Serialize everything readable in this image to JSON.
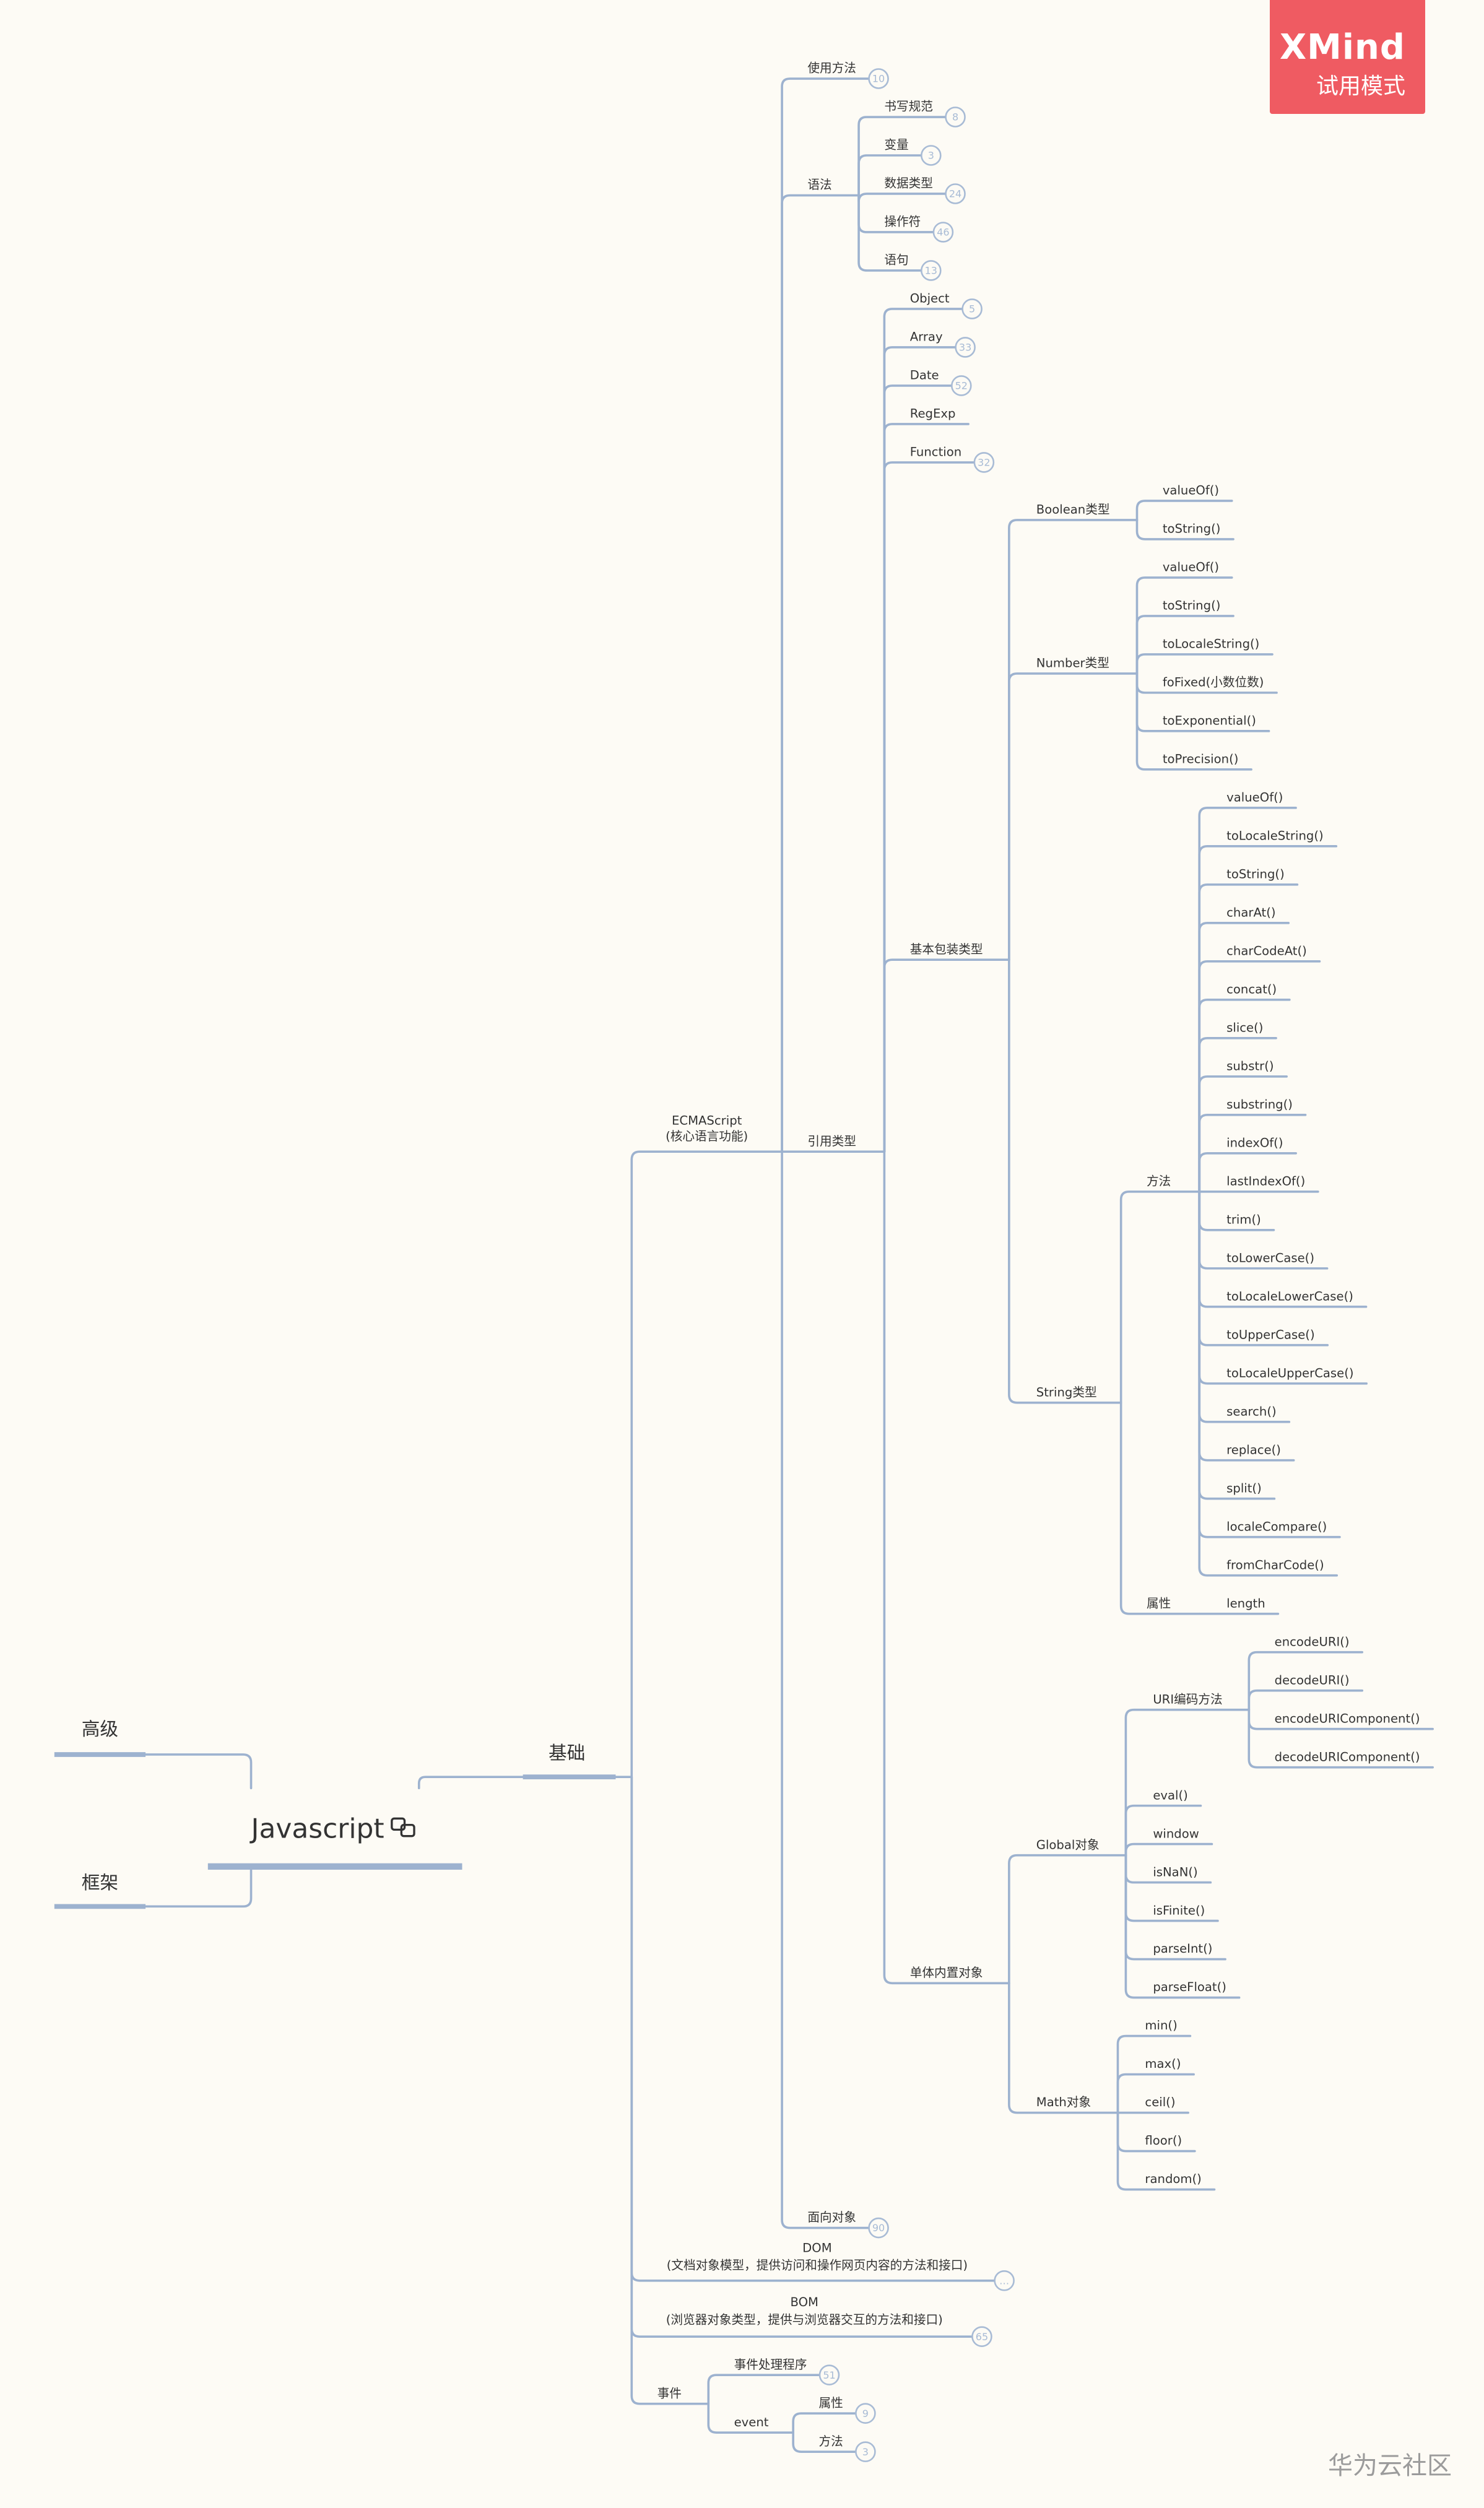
{
  "badge": {
    "title": "XMind",
    "subtitle": "试用模式"
  },
  "watermark": "华为云社区",
  "colors": {
    "line": "#9db2cf",
    "badge": "#ef5b62",
    "background": "#fdfbf5"
  },
  "root": {
    "label": "Javascript",
    "icon": "linked-copy-icon",
    "left": [
      {
        "label": "高级"
      },
      {
        "label": "框架"
      }
    ],
    "right": {
      "label": "基础",
      "children": [
        {
          "label": "ECMAScript",
          "sublabel": "(核心语言功能)",
          "children": [
            {
              "label": "使用方法",
              "badge": "10"
            },
            {
              "label": "语法",
              "children": [
                {
                  "label": "书写规范",
                  "badge": "8"
                },
                {
                  "label": "变量",
                  "badge": "3"
                },
                {
                  "label": "数据类型",
                  "badge": "24"
                },
                {
                  "label": "操作符",
                  "badge": "46"
                },
                {
                  "label": "语句",
                  "badge": "13"
                }
              ]
            },
            {
              "label": "引用类型",
              "children": [
                {
                  "label": "Object",
                  "badge": "5"
                },
                {
                  "label": "Array",
                  "badge": "33"
                },
                {
                  "label": "Date",
                  "badge": "52"
                },
                {
                  "label": "RegExp"
                },
                {
                  "label": "Function",
                  "badge": "32"
                },
                {
                  "label": "基本包装类型",
                  "children": [
                    {
                      "label": "Boolean类型",
                      "children": [
                        {
                          "label": "valueOf()"
                        },
                        {
                          "label": "toString()"
                        }
                      ]
                    },
                    {
                      "label": "Number类型",
                      "children": [
                        {
                          "label": "valueOf()"
                        },
                        {
                          "label": "toString()"
                        },
                        {
                          "label": "toLocaleString()"
                        },
                        {
                          "label": "foFixed(小数位数)"
                        },
                        {
                          "label": "toExponential()"
                        },
                        {
                          "label": "toPrecision()"
                        }
                      ]
                    },
                    {
                      "label": "String类型",
                      "children": [
                        {
                          "label": "方法",
                          "children": [
                            {
                              "label": "valueOf()"
                            },
                            {
                              "label": "toLocaleString()"
                            },
                            {
                              "label": "toString()"
                            },
                            {
                              "label": "charAt()"
                            },
                            {
                              "label": "charCodeAt()"
                            },
                            {
                              "label": "concat()"
                            },
                            {
                              "label": "slice()"
                            },
                            {
                              "label": "substr()"
                            },
                            {
                              "label": "substring()"
                            },
                            {
                              "label": "indexOf()"
                            },
                            {
                              "label": "lastIndexOf()"
                            },
                            {
                              "label": "trim()"
                            },
                            {
                              "label": "toLowerCase()"
                            },
                            {
                              "label": "toLocaleLowerCase()"
                            },
                            {
                              "label": "toUpperCase()"
                            },
                            {
                              "label": "toLocaleUpperCase()"
                            },
                            {
                              "label": "search()"
                            },
                            {
                              "label": "replace()"
                            },
                            {
                              "label": "split()"
                            },
                            {
                              "label": "localeCompare()"
                            },
                            {
                              "label": "fromCharCode()"
                            }
                          ]
                        },
                        {
                          "label": "属性",
                          "children": [
                            {
                              "label": "length"
                            }
                          ]
                        }
                      ]
                    }
                  ]
                },
                {
                  "label": "单体内置对象",
                  "children": [
                    {
                      "label": "Global对象",
                      "children": [
                        {
                          "label": "URI编码方法",
                          "children": [
                            {
                              "label": "encodeURI()"
                            },
                            {
                              "label": "decodeURI()"
                            },
                            {
                              "label": "encodeURIComponent()"
                            },
                            {
                              "label": "decodeURIComponent()"
                            }
                          ]
                        },
                        {
                          "label": "eval()"
                        },
                        {
                          "label": "window"
                        },
                        {
                          "label": "isNaN()"
                        },
                        {
                          "label": "isFinite()"
                        },
                        {
                          "label": "parseInt()"
                        },
                        {
                          "label": "parseFloat()"
                        }
                      ]
                    },
                    {
                      "label": "Math对象",
                      "children": [
                        {
                          "label": "min()"
                        },
                        {
                          "label": "max()"
                        },
                        {
                          "label": "ceil()"
                        },
                        {
                          "label": "floor()"
                        },
                        {
                          "label": "random()"
                        }
                      ]
                    }
                  ]
                }
              ]
            },
            {
              "label": "面向对象",
              "badge": "90"
            }
          ]
        },
        {
          "label": "DOM",
          "sublabel": "(文档对象模型，提供访问和操作网页内容的方法和接口)",
          "badge": "…"
        },
        {
          "label": "BOM",
          "sublabel": "(浏览器对象类型，提供与浏览器交互的方法和接口)",
          "badge": "65"
        },
        {
          "label": "事件",
          "children": [
            {
              "label": "事件处理程序",
              "badge": "51"
            },
            {
              "label": "event",
              "children": [
                {
                  "label": "属性",
                  "badge": "9"
                },
                {
                  "label": "方法",
                  "badge": "3"
                }
              ]
            }
          ]
        }
      ]
    }
  }
}
